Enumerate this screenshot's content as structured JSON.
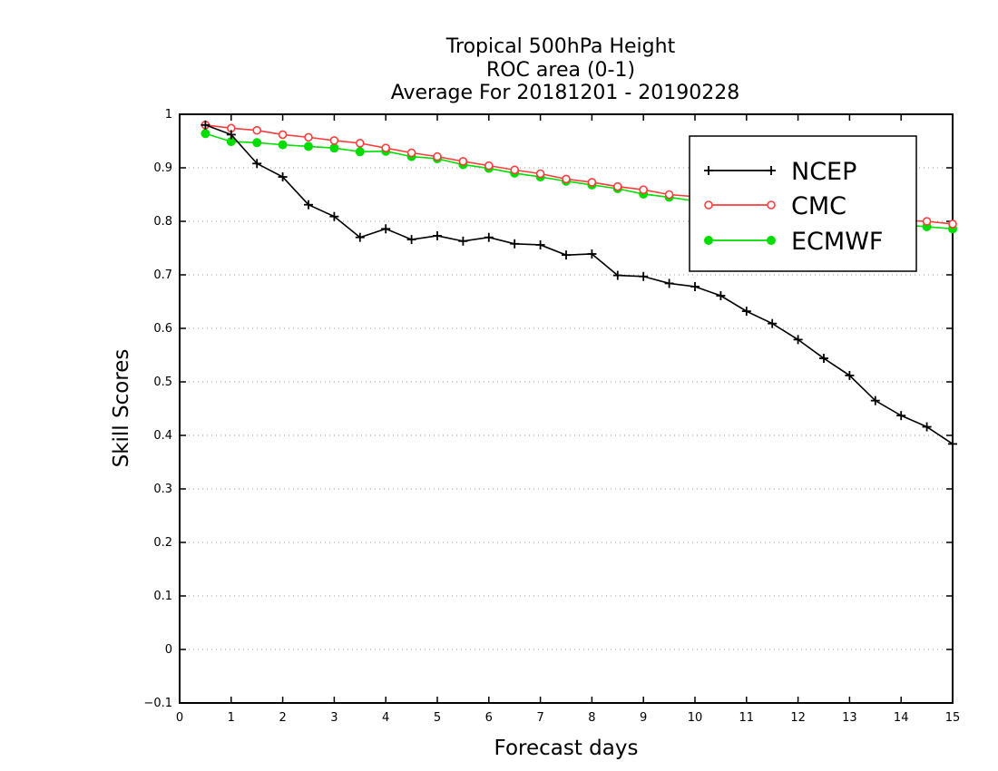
{
  "chart_data": {
    "type": "line",
    "title": [
      "Tropical 500hPa Height",
      "ROC area (0-1)",
      "Average For 20181201 - 20190228"
    ],
    "xlabel": "Forecast days",
    "ylabel": "Skill Scores",
    "xlim": [
      0,
      15
    ],
    "ylim": [
      -0.1,
      1
    ],
    "x_ticks": [
      "0",
      "1",
      "2",
      "3",
      "4",
      "5",
      "6",
      "7",
      "8",
      "9",
      "10",
      "11",
      "12",
      "13",
      "14",
      "15"
    ],
    "y_ticks": [
      "−0.1",
      "0",
      "0.1",
      "0.2",
      "0.3",
      "0.4",
      "0.5",
      "0.6",
      "0.7",
      "0.8",
      "0.9",
      "1"
    ],
    "grid": "horizontal-dotted",
    "legend_position": "top-right",
    "x": [
      0.5,
      1,
      1.5,
      2,
      2.5,
      3,
      3.5,
      4,
      4.5,
      5,
      5.5,
      6,
      6.5,
      7,
      7.5,
      8,
      8.5,
      9,
      9.5,
      10,
      10.5,
      11,
      11.5,
      12,
      12.5,
      13,
      13.5,
      14,
      14.5,
      15
    ],
    "series": [
      {
        "name": "NCEP",
        "color": "#000000",
        "marker": "plus",
        "values": [
          0.98,
          0.962,
          0.908,
          0.883,
          0.831,
          0.809,
          0.77,
          0.786,
          0.766,
          0.773,
          0.763,
          0.77,
          0.758,
          0.756,
          0.737,
          0.739,
          0.699,
          0.697,
          0.684,
          0.678,
          0.661,
          0.632,
          0.609,
          0.579,
          0.544,
          0.512,
          0.465,
          0.437,
          0.416,
          0.384
        ]
      },
      {
        "name": "CMC",
        "color": "#ff3b3b",
        "marker": "open-circle",
        "values": [
          0.98,
          0.974,
          0.97,
          0.962,
          0.957,
          0.951,
          0.946,
          0.937,
          0.928,
          0.921,
          0.912,
          0.904,
          0.896,
          0.889,
          0.879,
          0.873,
          0.865,
          0.859,
          0.85,
          0.846,
          0.838,
          0.833,
          0.827,
          0.822,
          0.816,
          0.812,
          0.806,
          0.802,
          0.8,
          0.795
        ]
      },
      {
        "name": "ECMWF",
        "color": "#00dd00",
        "marker": "filled-circle",
        "values": [
          0.964,
          0.949,
          0.947,
          0.943,
          0.94,
          0.937,
          0.93,
          0.931,
          0.921,
          0.917,
          0.906,
          0.899,
          0.89,
          0.883,
          0.875,
          0.868,
          0.861,
          0.851,
          0.845,
          0.838,
          0.831,
          0.825,
          0.82,
          0.814,
          0.808,
          0.803,
          0.797,
          0.793,
          0.79,
          0.786
        ]
      }
    ]
  }
}
